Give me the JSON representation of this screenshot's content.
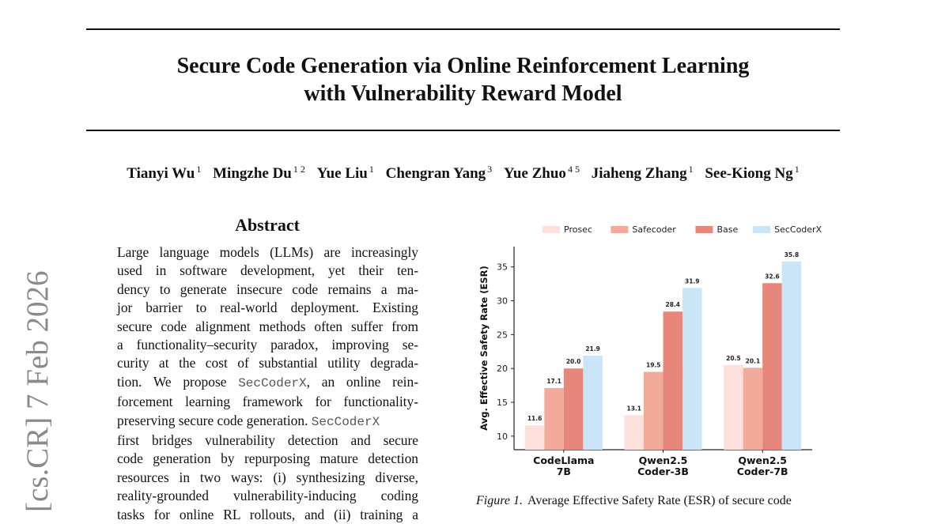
{
  "paper": {
    "title_lines": [
      "Secure Code Generation via Online Reinforcement Learning",
      "with Vulnerability Reward Model"
    ],
    "authors": [
      {
        "name": "Tianyi Wu",
        "aff": "1"
      },
      {
        "name": "Mingzhe Du",
        "aff": "1 2"
      },
      {
        "name": "Yue Liu",
        "aff": "1"
      },
      {
        "name": "Chengran Yang",
        "aff": "3"
      },
      {
        "name": "Yue Zhuo",
        "aff": "4 5"
      },
      {
        "name": "Jiaheng Zhang",
        "aff": "1"
      },
      {
        "name": "See-Kiong Ng",
        "aff": "1"
      }
    ],
    "arxiv_stamp": "[cs.CR]  7 Feb 2026"
  },
  "abstract": {
    "heading": "Abstract",
    "lines": [
      {
        "text": "Large language models (LLMs) are increasingly"
      },
      {
        "text": "used in software development, yet their ten-"
      },
      {
        "text": "dency to generate insecure code remains a ma-"
      },
      {
        "text": "jor barrier to real-world deployment.  Existing"
      },
      {
        "text": "secure code alignment methods often suffer from"
      },
      {
        "text": "a functionality–security paradox, improving se-"
      },
      {
        "text": "curity at the cost of substantial utility degrada-"
      },
      {
        "pre": "tion.  We propose ",
        "code": "SecCoderX",
        "post": ", an online rein-"
      },
      {
        "text": "forcement learning framework for functionality-"
      },
      {
        "pre": "preserving secure code generation. ",
        "code": "SecCoderX",
        "post": ""
      },
      {
        "text": "first bridges vulnerability detection and secure"
      },
      {
        "text": "code generation by repurposing mature detection"
      },
      {
        "text": "resources in two ways: (i) synthesizing diverse,"
      },
      {
        "text": "reality-grounded vulnerability-inducing coding"
      },
      {
        "text": "tasks for online RL rollouts, and (ii) training a"
      }
    ]
  },
  "figure": {
    "caption_label": "Figure 1.",
    "caption_text": "Average Effective Safety Rate (ESR) of secure code"
  },
  "chart_data": {
    "type": "bar",
    "categories": [
      [
        "CodeLlama",
        "7B"
      ],
      [
        "Qwen2.5",
        "Coder-3B"
      ],
      [
        "Qwen2.5",
        "Coder-7B"
      ]
    ],
    "series": [
      {
        "name": "Prosec",
        "color": "#fde0dc",
        "values": [
          11.6,
          13.1,
          20.5
        ]
      },
      {
        "name": "Safecoder",
        "color": "#f2ab9b",
        "values": [
          17.1,
          19.5,
          20.1
        ]
      },
      {
        "name": "Base",
        "color": "#e7867a",
        "values": [
          20.0,
          28.4,
          32.6
        ]
      },
      {
        "name": "SecCoderX",
        "color": "#c9e5f7",
        "values": [
          21.9,
          31.9,
          35.8
        ]
      }
    ],
    "ylabel": "Avg. Effective Safety Rate (ESR)",
    "xlabel": "",
    "ylim": [
      8,
      38
    ],
    "yticks": [
      10,
      15,
      20,
      25,
      30,
      35
    ],
    "legend": "top",
    "grid": false
  }
}
